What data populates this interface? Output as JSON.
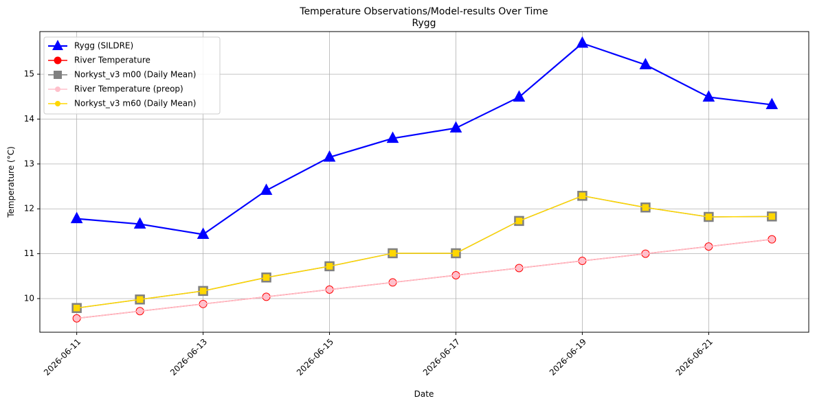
{
  "chart_data": {
    "type": "line",
    "title": "Temperature Observations/Model-results Over Time",
    "subtitle": "Rygg",
    "xlabel": "Date",
    "ylabel": "Temperature (°C)",
    "x": [
      "2026-06-11",
      "2026-06-12",
      "2026-06-13",
      "2026-06-14",
      "2026-06-15",
      "2026-06-16",
      "2026-06-17",
      "2026-06-18",
      "2026-06-19",
      "2026-06-20",
      "2026-06-21",
      "2026-06-22"
    ],
    "xticks": [
      "2026-06-11",
      "2026-06-13",
      "2026-06-15",
      "2026-06-17",
      "2026-06-19",
      "2026-06-21"
    ],
    "yticks": [
      10,
      11,
      12,
      13,
      14,
      15
    ],
    "ylim": [
      9.25,
      15.95
    ],
    "xlim": [
      "2026-06-10T10:00",
      "2026-06-22T14:00"
    ],
    "grid": true,
    "legend_position": "top-left",
    "series": [
      {
        "name": "Rygg (SILDRE)",
        "color": "#0000ff",
        "marker": "triangle",
        "values": [
          11.78,
          11.66,
          11.43,
          12.41,
          13.15,
          13.57,
          13.8,
          14.49,
          15.69,
          15.21,
          14.49,
          14.32
        ]
      },
      {
        "name": "River Temperature",
        "color": "#ff0000",
        "marker": "circle",
        "values": [
          9.56,
          9.72,
          9.88,
          10.04,
          10.2,
          10.36,
          10.52,
          10.68,
          10.84,
          11.0,
          11.16,
          11.32
        ]
      },
      {
        "name": "Norkyst_v3 m00 (Daily Mean)",
        "color": "#808080",
        "marker": "square",
        "values": [
          9.79,
          9.98,
          10.17,
          10.47,
          10.72,
          11.01,
          11.01,
          11.73,
          12.29,
          12.03,
          11.82,
          11.83
        ]
      },
      {
        "name": "River Temperature (preop)",
        "color": "#ffc0cb",
        "marker": "small-circle",
        "values": [
          9.56,
          9.72,
          9.88,
          10.04,
          10.2,
          10.36,
          10.52,
          10.68,
          10.84,
          11.0,
          11.16,
          11.32
        ]
      },
      {
        "name": "Norkyst_v3 m60 (Daily Mean)",
        "color": "#ffd700",
        "marker": "small-circle",
        "values": [
          9.79,
          9.98,
          10.17,
          10.47,
          10.72,
          11.01,
          11.01,
          11.73,
          12.29,
          12.03,
          11.82,
          11.83
        ]
      }
    ]
  }
}
